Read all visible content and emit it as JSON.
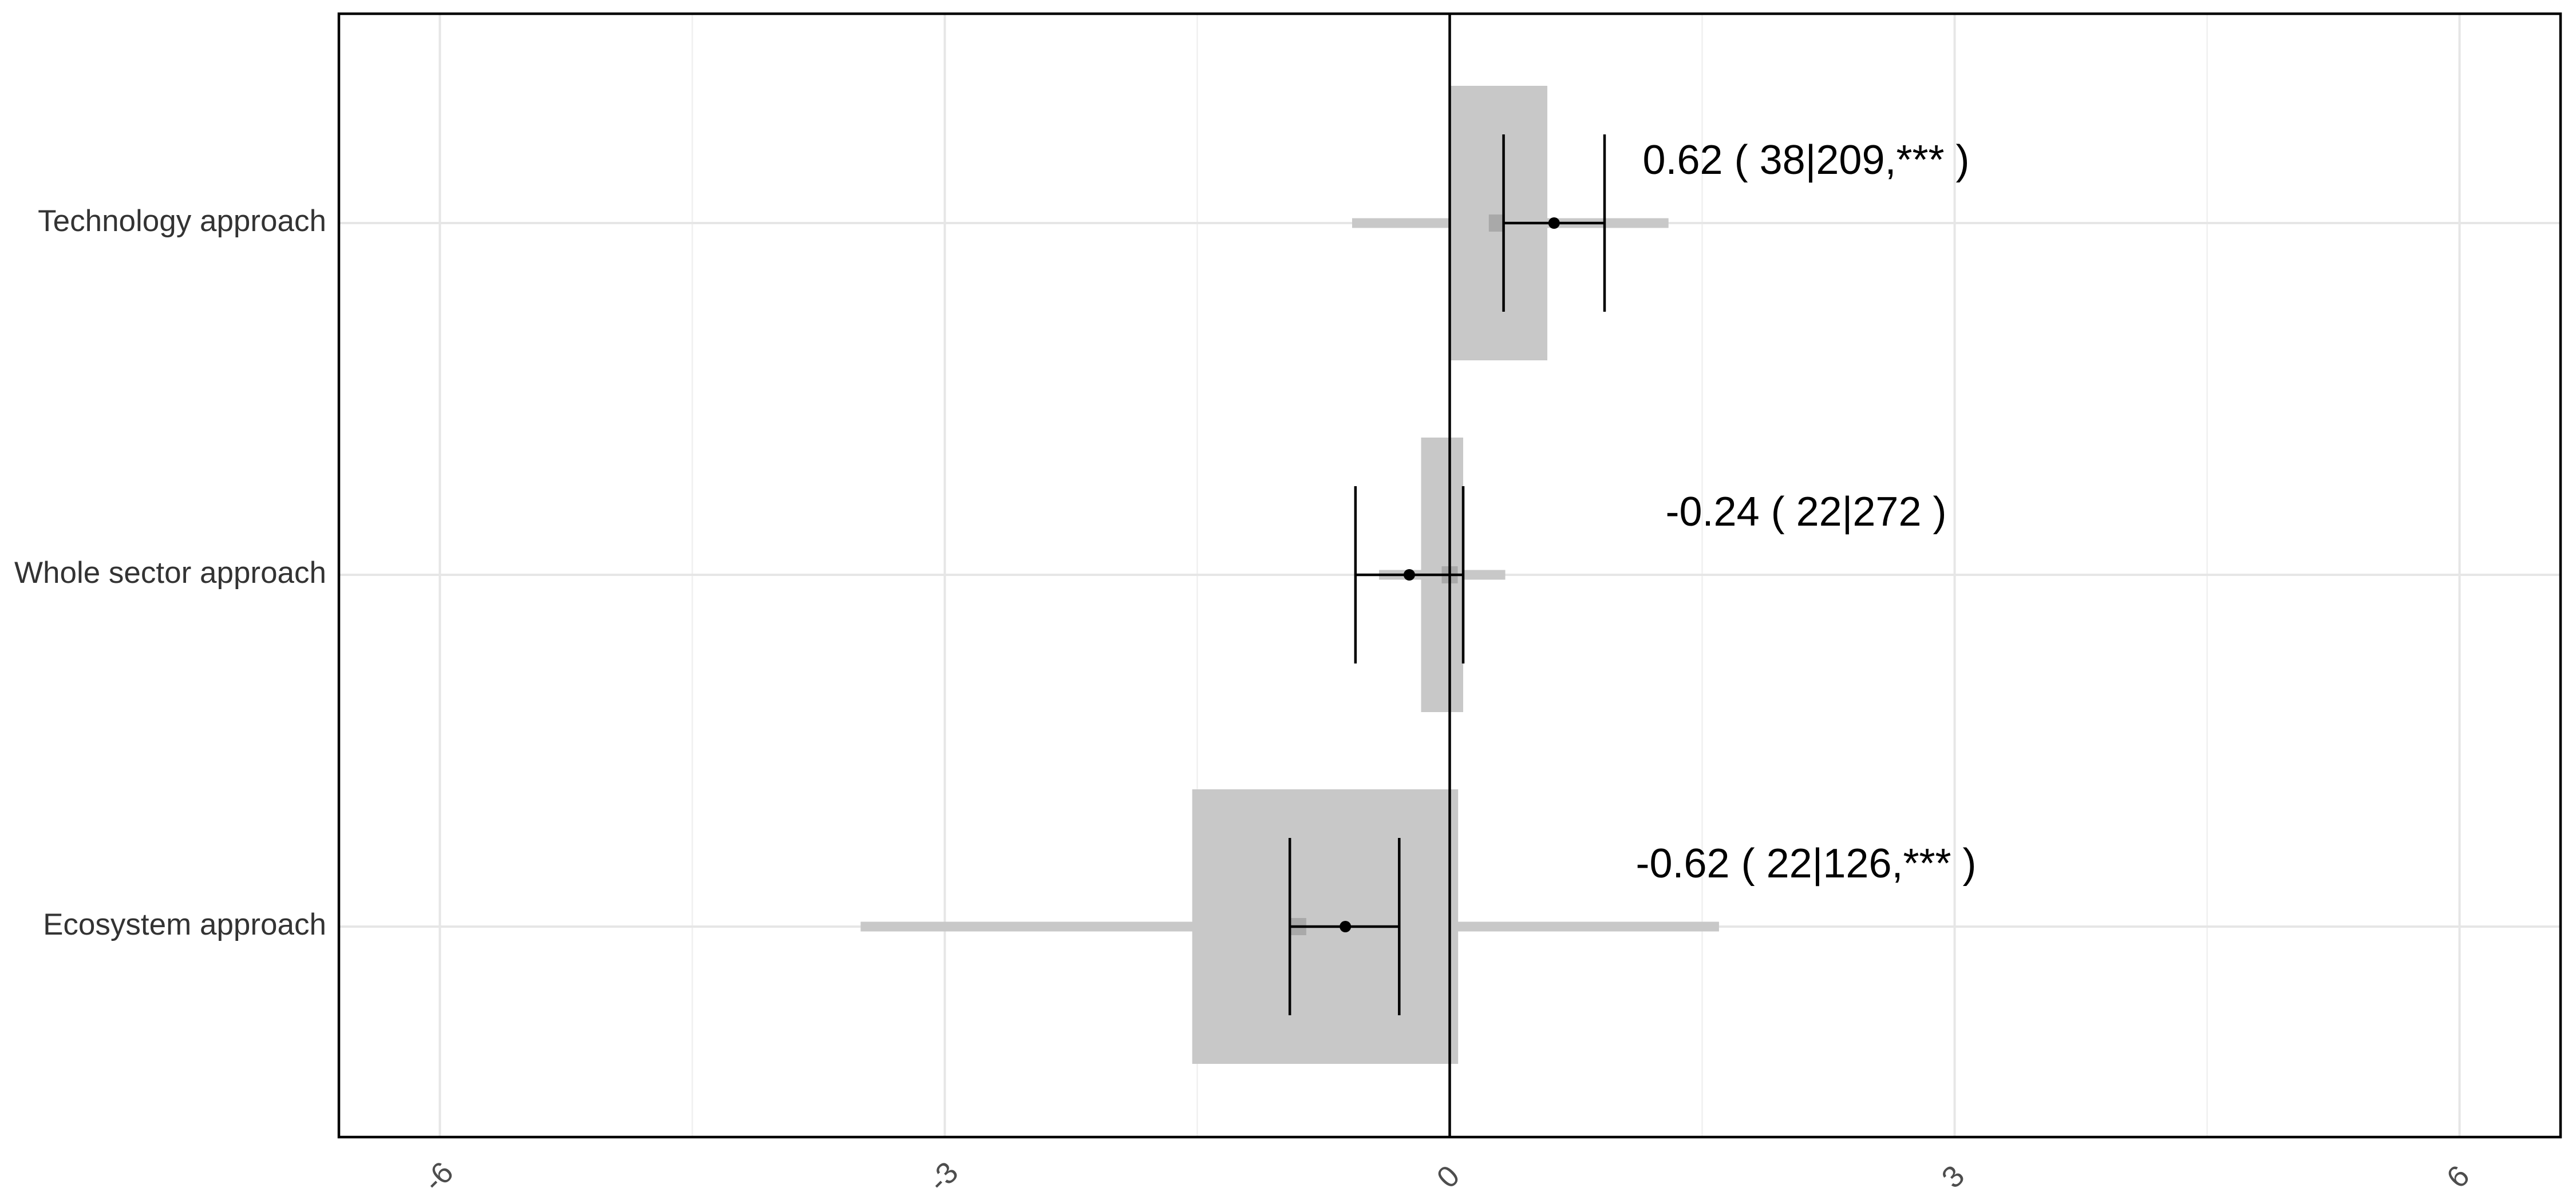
{
  "chart_data": {
    "type": "forest",
    "orientation": "horizontal",
    "categories": [
      "Technology approach",
      "Whole sector approach",
      "Ecosystem approach"
    ],
    "xlim": [
      -6.6,
      6.6
    ],
    "x_ticks": [
      -6,
      -3,
      0,
      3,
      6
    ],
    "x_tick_labels": [
      "-6",
      "-3",
      "0",
      "3",
      "6"
    ],
    "x_minor_ticks": [
      -4.5,
      -1.5,
      1.5,
      4.5
    ],
    "xlabel": "",
    "ylabel": "",
    "grid": true,
    "reference_line_x": 0,
    "colors": {
      "box": "#c8c8c8",
      "range_bar": "#c8c8c8",
      "median_mark": "#a9a9a9",
      "point": "#000000",
      "axis": "#000000",
      "grid": "#e6e6e6"
    },
    "series": [
      {
        "category": "Technology approach",
        "estimate": 0.62,
        "ci": [
          0.32,
          0.92
        ],
        "box": [
          0.0,
          0.58
        ],
        "range": [
          -0.58,
          1.3
        ],
        "median": 0.28,
        "label": "0.62 ( 38|209,*** )"
      },
      {
        "category": "Whole sector approach",
        "estimate": -0.24,
        "ci": [
          -0.56,
          0.08
        ],
        "box": [
          -0.17,
          0.08
        ],
        "range": [
          -0.42,
          0.33
        ],
        "median": 0.0,
        "label": "-0.24 ( 22|272 )"
      },
      {
        "category": "Ecosystem approach",
        "estimate": -0.62,
        "ci": [
          -0.95,
          -0.3
        ],
        "box": [
          -1.53,
          0.05
        ],
        "range": [
          -3.5,
          1.6
        ],
        "median": -0.9,
        "label": "-0.62 ( 22|126,*** )"
      }
    ]
  }
}
